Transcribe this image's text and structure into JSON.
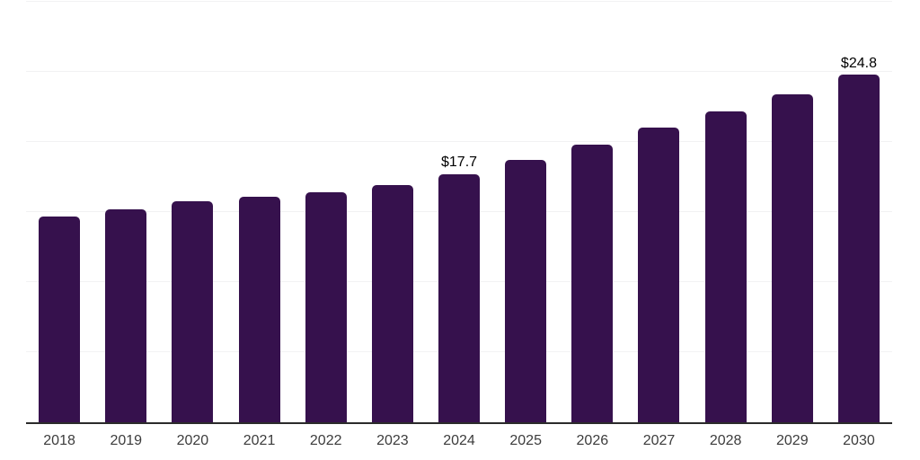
{
  "chart_data": {
    "type": "bar",
    "title": "",
    "xlabel": "",
    "ylabel": "",
    "categories": [
      "2018",
      "2019",
      "2020",
      "2021",
      "2022",
      "2023",
      "2024",
      "2025",
      "2026",
      "2027",
      "2028",
      "2029",
      "2030"
    ],
    "values": [
      14.7,
      15.2,
      15.8,
      16.1,
      16.4,
      16.9,
      17.7,
      18.7,
      19.8,
      21.0,
      22.2,
      23.4,
      24.8
    ],
    "data_labels": {
      "2024": "$17.7",
      "2030": "$24.8"
    },
    "ylim": [
      0,
      30
    ],
    "grid": true,
    "grid_step": 5,
    "legend": false,
    "colors": {
      "bar": "#36114d",
      "grid": "#f2f2f3",
      "axis": "#2b2b2b",
      "data_label": "#000000",
      "tick_label": "#3c3c3c",
      "background": "#ffffff"
    }
  }
}
